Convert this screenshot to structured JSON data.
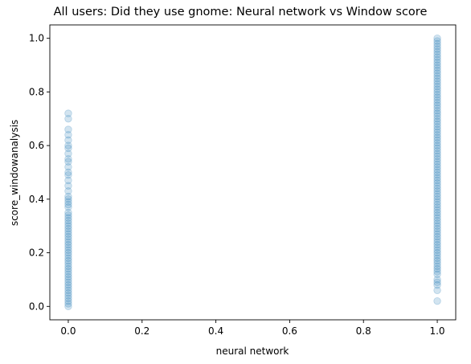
{
  "chart_data": {
    "type": "scatter",
    "title": "All users: Did they use gnome: Neural network vs Window score",
    "xlabel": "neural network",
    "ylabel": "score_windowanalysis",
    "xlim": [
      -0.05,
      1.05
    ],
    "ylim": [
      -0.05,
      1.05
    ],
    "x_ticks": [
      "0.0",
      "0.2",
      "0.4",
      "0.6",
      "0.8",
      "1.0"
    ],
    "y_ticks": [
      "0.0",
      "0.2",
      "0.4",
      "0.6",
      "0.8",
      "1.0"
    ],
    "grid": false,
    "legend": "none",
    "marker_color": "#1f77b4",
    "marker_alpha": 0.2,
    "series": [
      {
        "x_value": 0,
        "y": [
          0.72,
          0.7,
          0.66,
          0.64,
          0.62,
          0.6,
          0.59,
          0.57,
          0.55,
          0.54,
          0.52,
          0.5,
          0.49,
          0.47,
          0.45,
          0.43,
          0.41,
          0.4,
          0.39,
          0.38,
          0.37,
          0.35,
          0.34,
          0.33,
          0.32,
          0.31,
          0.3,
          0.29,
          0.28,
          0.27,
          0.26,
          0.25,
          0.24,
          0.23,
          0.22,
          0.21,
          0.2,
          0.19,
          0.18,
          0.17,
          0.16,
          0.15,
          0.14,
          0.13,
          0.12,
          0.11,
          0.1,
          0.09,
          0.08,
          0.07,
          0.06,
          0.05,
          0.04,
          0.03,
          0.02,
          0.01,
          0.0
        ]
      },
      {
        "x_value": 1,
        "y": [
          1.0,
          0.99,
          0.98,
          0.97,
          0.96,
          0.95,
          0.94,
          0.93,
          0.92,
          0.91,
          0.9,
          0.89,
          0.88,
          0.87,
          0.86,
          0.85,
          0.84,
          0.83,
          0.82,
          0.81,
          0.8,
          0.79,
          0.78,
          0.77,
          0.76,
          0.75,
          0.74,
          0.73,
          0.72,
          0.71,
          0.7,
          0.69,
          0.68,
          0.67,
          0.66,
          0.65,
          0.64,
          0.63,
          0.62,
          0.61,
          0.6,
          0.59,
          0.58,
          0.57,
          0.56,
          0.55,
          0.54,
          0.53,
          0.52,
          0.51,
          0.5,
          0.49,
          0.48,
          0.47,
          0.46,
          0.45,
          0.44,
          0.43,
          0.42,
          0.41,
          0.4,
          0.39,
          0.38,
          0.37,
          0.36,
          0.35,
          0.34,
          0.33,
          0.32,
          0.31,
          0.3,
          0.29,
          0.28,
          0.27,
          0.26,
          0.25,
          0.24,
          0.23,
          0.22,
          0.21,
          0.2,
          0.19,
          0.18,
          0.17,
          0.16,
          0.15,
          0.14,
          0.13,
          0.12,
          0.1,
          0.09,
          0.08,
          0.06,
          0.02
        ]
      }
    ]
  }
}
